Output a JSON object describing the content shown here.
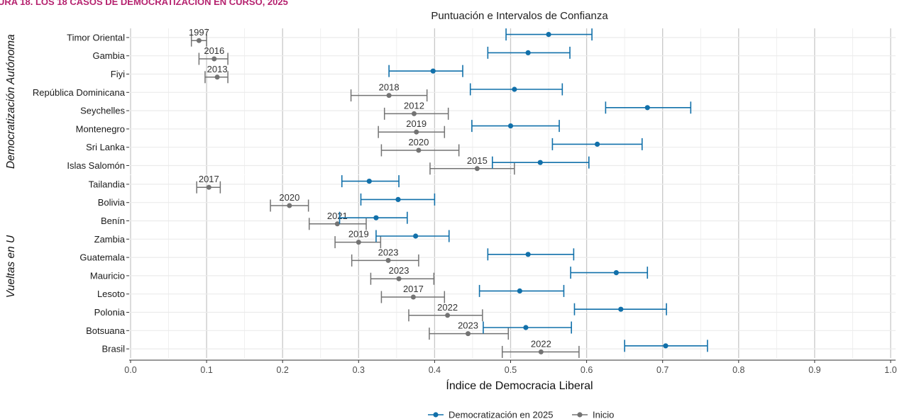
{
  "figure_title": "URA 18. LOS 18 CASOS DE DEMOCRATIZACIÓN EN CURSO, 2025",
  "colors": {
    "current": "#1170aa",
    "start": "#737373",
    "title_accent": "#b5216e",
    "grid": "#c8c8c8",
    "band": "#ebebeb"
  },
  "chart_data": {
    "type": "scatter",
    "title": "Puntuación e Intervalos de Confianza",
    "xlabel": "Índice de Democracia Liberal",
    "ylabel": "",
    "xlim": [
      0,
      1.0
    ],
    "xticks": [
      "0.0",
      "0.1",
      "0.2",
      "0.3",
      "0.4",
      "0.5",
      "0.6",
      "0.7",
      "0.8",
      "0.9",
      "1.0"
    ],
    "grid": true,
    "legend_position": "bottom",
    "legend": [
      "Democratización en 2025",
      "Inicio"
    ],
    "groups": [
      {
        "label": "Democratización Autónoma",
        "rows": [
          {
            "country": "Timor Oriental",
            "current": {
              "value": 0.55,
              "low": 0.494,
              "high": 0.607
            },
            "start": {
              "value": 0.09,
              "low": 0.08,
              "high": 0.1,
              "year": "1997"
            }
          },
          {
            "country": "Gambia",
            "current": {
              "value": 0.523,
              "low": 0.47,
              "high": 0.578
            },
            "start": {
              "value": 0.11,
              "low": 0.09,
              "high": 0.128,
              "year": "2016"
            }
          },
          {
            "country": "Fiyi",
            "current": {
              "value": 0.398,
              "low": 0.34,
              "high": 0.437
            },
            "start": {
              "value": 0.114,
              "low": 0.098,
              "high": 0.128,
              "year": "2013"
            }
          },
          {
            "country": "República Dominicana",
            "current": {
              "value": 0.505,
              "low": 0.447,
              "high": 0.568
            },
            "start": {
              "value": 0.34,
              "low": 0.29,
              "high": 0.39,
              "year": "2018"
            }
          },
          {
            "country": "Seychelles",
            "current": {
              "value": 0.68,
              "low": 0.625,
              "high": 0.737
            },
            "start": {
              "value": 0.373,
              "low": 0.334,
              "high": 0.418,
              "year": "2012"
            }
          },
          {
            "country": "Montenegro",
            "current": {
              "value": 0.5,
              "low": 0.449,
              "high": 0.564
            },
            "start": {
              "value": 0.376,
              "low": 0.326,
              "high": 0.413,
              "year": "2019"
            }
          },
          {
            "country": "Sri Lanka",
            "current": {
              "value": 0.614,
              "low": 0.555,
              "high": 0.673
            },
            "start": {
              "value": 0.379,
              "low": 0.33,
              "high": 0.432,
              "year": "2020"
            }
          },
          {
            "country": "Islas Salomón",
            "current": {
              "value": 0.539,
              "low": 0.476,
              "high": 0.603
            },
            "start": {
              "value": 0.456,
              "low": 0.394,
              "high": 0.505,
              "year": "2015"
            }
          }
        ]
      },
      {
        "label": "Vueltas en U",
        "rows": [
          {
            "country": "Tailandia",
            "current": {
              "value": 0.314,
              "low": 0.278,
              "high": 0.353
            },
            "start": {
              "value": 0.103,
              "low": 0.087,
              "high": 0.118,
              "year": "2017"
            }
          },
          {
            "country": "Bolivia",
            "current": {
              "value": 0.352,
              "low": 0.303,
              "high": 0.4
            },
            "start": {
              "value": 0.209,
              "low": 0.184,
              "high": 0.234,
              "year": "2020"
            }
          },
          {
            "country": "Benín",
            "current": {
              "value": 0.323,
              "low": 0.275,
              "high": 0.364
            },
            "start": {
              "value": 0.272,
              "low": 0.235,
              "high": 0.31,
              "year": "2021"
            }
          },
          {
            "country": "Zambia",
            "current": {
              "value": 0.375,
              "low": 0.323,
              "high": 0.419
            },
            "start": {
              "value": 0.3,
              "low": 0.269,
              "high": 0.329,
              "year": "2019"
            }
          },
          {
            "country": "Guatemala",
            "current": {
              "value": 0.523,
              "low": 0.47,
              "high": 0.583
            },
            "start": {
              "value": 0.339,
              "low": 0.291,
              "high": 0.379,
              "year": "2023"
            }
          },
          {
            "country": "Mauricio",
            "current": {
              "value": 0.639,
              "low": 0.579,
              "high": 0.68
            },
            "start": {
              "value": 0.353,
              "low": 0.316,
              "high": 0.399,
              "year": "2023"
            }
          },
          {
            "country": "Lesoto",
            "current": {
              "value": 0.512,
              "low": 0.459,
              "high": 0.57
            },
            "start": {
              "value": 0.372,
              "low": 0.33,
              "high": 0.413,
              "year": "2017"
            }
          },
          {
            "country": "Polonia",
            "current": {
              "value": 0.645,
              "low": 0.584,
              "high": 0.705
            },
            "start": {
              "value": 0.417,
              "low": 0.366,
              "high": 0.463,
              "year": "2022"
            }
          },
          {
            "country": "Botsuana",
            "current": {
              "value": 0.52,
              "low": 0.464,
              "high": 0.58
            },
            "start": {
              "value": 0.444,
              "low": 0.393,
              "high": 0.497,
              "year": "2023"
            }
          },
          {
            "country": "Brasil",
            "current": {
              "value": 0.704,
              "low": 0.65,
              "high": 0.759
            },
            "start": {
              "value": 0.54,
              "low": 0.489,
              "high": 0.59,
              "year": "2022"
            }
          }
        ]
      }
    ]
  }
}
